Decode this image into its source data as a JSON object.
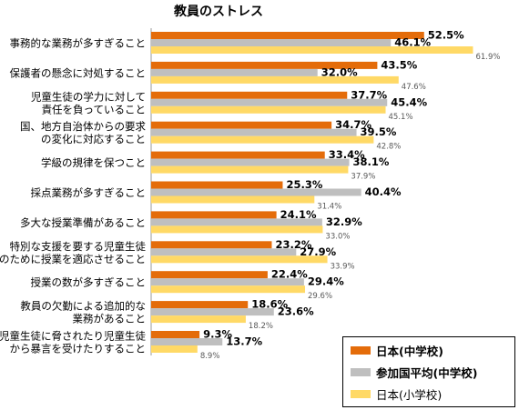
{
  "chart_data": {
    "type": "bar",
    "orientation": "horizontal",
    "title": "教員のストレス",
    "categories": [
      [
        "事務的な業務が多すぎること"
      ],
      [
        "保護者の懸念に対処すること"
      ],
      [
        "児童生徒の学力に対して",
        "責任を負っていること"
      ],
      [
        "国、地方自治体からの要求",
        "の変化に対応すること"
      ],
      [
        "学級の規律を保つこと"
      ],
      [
        "採点業務が多すぎること"
      ],
      [
        "多大な授業準備があること"
      ],
      [
        "特別な支援を要する児童生徒",
        "のために授業を適応させること"
      ],
      [
        "授業の数が多すぎること"
      ],
      [
        "教員の欠勤による追加的な",
        "業務があること"
      ],
      [
        "児童生徒に脅されたり児童生徒",
        "から暴言を受けたりすること"
      ]
    ],
    "series": [
      {
        "name": "日本(中学校)",
        "color": "#E46C0A",
        "values": [
          52.5,
          43.5,
          37.7,
          34.7,
          33.4,
          25.3,
          24.1,
          23.2,
          22.4,
          18.6,
          9.3
        ],
        "labels": [
          "52.5%",
          "43.5%",
          "37.7%",
          "34.7%",
          "33.4%",
          "25.3%",
          "24.1%",
          "23.2%",
          "22.4%",
          "18.6%",
          "9.3%"
        ]
      },
      {
        "name": "参加国平均(中学校)",
        "color": "#BFBFBF",
        "values": [
          46.1,
          32.0,
          45.4,
          39.5,
          38.1,
          40.4,
          32.9,
          27.9,
          29.4,
          23.6,
          13.7
        ],
        "labels": [
          "46.1%",
          "32.0%",
          "45.4%",
          "39.5%",
          "38.1%",
          "40.4%",
          "32.9%",
          "27.9%",
          "29.4%",
          "23.6%",
          "13.7%"
        ]
      },
      {
        "name": "日本(小学校)",
        "color": "#FFD966",
        "values": [
          61.9,
          47.6,
          45.1,
          42.8,
          37.9,
          31.4,
          33.0,
          33.9,
          29.6,
          18.2,
          8.9
        ],
        "labels": [
          "61.9%",
          "47.6%",
          "45.1%",
          "42.8%",
          "37.9%",
          "31.4%",
          "33.0%",
          "33.9%",
          "29.6%",
          "18.2%",
          "8.9%"
        ]
      }
    ],
    "xlim": [
      0,
      70
    ],
    "units": "%",
    "legend": {
      "position": "bottom-right",
      "entries": [
        "日本(中学校)",
        "参加国平均(中学校)",
        "日本(小学校)"
      ]
    }
  }
}
